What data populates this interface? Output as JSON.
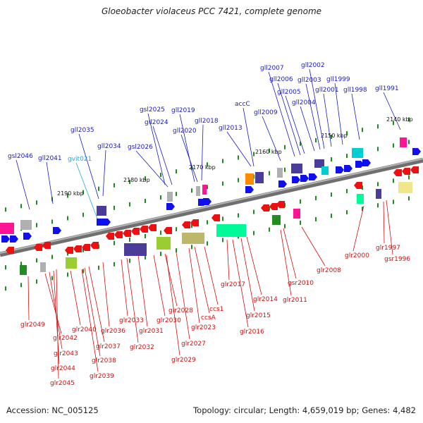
{
  "title": "Gloeobacter violaceus PCC 7421, complete genome",
  "footer": {
    "accession": "Accession: NC_005125",
    "summary": "Topology: circular; Length: 4,659,019 bp; Genes: 4,482"
  },
  "colors": {
    "plus_label": "#1a1ac8",
    "minus_label": "#d01010",
    "tRNA_label": "#22aadd",
    "backbone": "#8c8c8c",
    "kbp_tick": "#1f8a1f"
  },
  "kbp_scale": [
    {
      "label": "2140 kbp"
    },
    {
      "label": "2150 kbp"
    },
    {
      "label": "2160 kbp"
    },
    {
      "label": "2170 kbp"
    },
    {
      "label": "2180 kbp"
    },
    {
      "label": "2190 kbp"
    }
  ],
  "plus_genes": [
    {
      "name": "gsl2046"
    },
    {
      "name": "gll2041"
    },
    {
      "name": "gvit021",
      "rna": true
    },
    {
      "name": "gll2035"
    },
    {
      "name": "gll2034"
    },
    {
      "name": "gsl2026"
    },
    {
      "name": "gsl2025"
    },
    {
      "name": "gll2024"
    },
    {
      "name": "gll2019"
    },
    {
      "name": "gll2020"
    },
    {
      "name": "gll2018"
    },
    {
      "name": "gll2013"
    },
    {
      "name": "accC"
    },
    {
      "name": "gll2009"
    },
    {
      "name": "gll2007"
    },
    {
      "name": "gll2006"
    },
    {
      "name": "gll2005"
    },
    {
      "name": "gll2004"
    },
    {
      "name": "gll2003"
    },
    {
      "name": "gll2002"
    },
    {
      "name": "gll2001"
    },
    {
      "name": "gll1999"
    },
    {
      "name": "gll1998"
    },
    {
      "name": "gll1991"
    }
  ],
  "minus_genes": [
    {
      "name": "glr2049"
    },
    {
      "name": "glr2042"
    },
    {
      "name": "glr2043"
    },
    {
      "name": "glr2044"
    },
    {
      "name": "glr2045"
    },
    {
      "name": "glr2040"
    },
    {
      "name": "glr2037"
    },
    {
      "name": "glr2038"
    },
    {
      "name": "glr2039"
    },
    {
      "name": "glr2036"
    },
    {
      "name": "glr2033"
    },
    {
      "name": "glr2032"
    },
    {
      "name": "glr2031"
    },
    {
      "name": "glr2030"
    },
    {
      "name": "glr2028"
    },
    {
      "name": "glr2029"
    },
    {
      "name": "glr2027"
    },
    {
      "name": "glr2023"
    },
    {
      "name": "ccsA"
    },
    {
      "name": "ccs1"
    },
    {
      "name": "glr2017"
    },
    {
      "name": "glr2016"
    },
    {
      "name": "glr2015"
    },
    {
      "name": "glr2014"
    },
    {
      "name": "glr2011"
    },
    {
      "name": "gsr2010"
    },
    {
      "name": "glr2008"
    },
    {
      "name": "glr2000"
    },
    {
      "name": "glr1997"
    },
    {
      "name": "gsr1996"
    }
  ]
}
